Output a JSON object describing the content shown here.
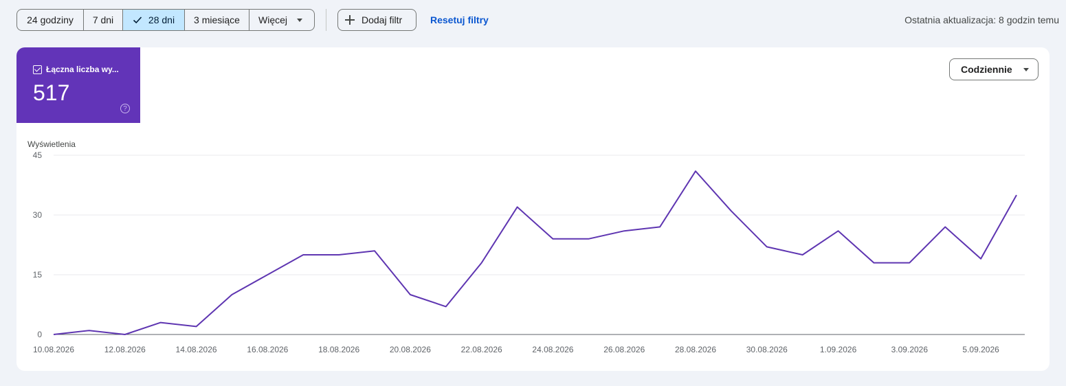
{
  "toolbar": {
    "ranges": [
      "24 godziny",
      "7 dni",
      "28 dni",
      "3 miesiące",
      "Więcej"
    ],
    "selected_range": "28 dni",
    "add_filter_label": "Dodaj filtr",
    "reset_label": "Resetuj filtry"
  },
  "last_update": "Ostatnia aktualizacja: 8 godzin temu",
  "metric": {
    "label": "Łączna liczba wy...",
    "value": "517",
    "checked": true,
    "color": "#6234b8"
  },
  "granularity": {
    "label": "Codziennie"
  },
  "chart_data": {
    "type": "line",
    "ylabel": "Wyświetlenia",
    "ylim": [
      0,
      45
    ],
    "yticks": [
      0,
      15,
      30,
      45
    ],
    "xtick_labels": [
      "10.08.2026",
      "12.08.2026",
      "14.08.2026",
      "16.08.2026",
      "18.08.2026",
      "20.08.2026",
      "22.08.2026",
      "24.08.2026",
      "26.08.2026",
      "28.08.2026",
      "30.08.2026",
      "1.09.2026",
      "3.09.2026",
      "5.09.2026"
    ],
    "x": [
      "10.08.2026",
      "11.08.2026",
      "12.08.2026",
      "13.08.2026",
      "14.08.2026",
      "15.08.2026",
      "16.08.2026",
      "17.08.2026",
      "18.08.2026",
      "19.08.2026",
      "20.08.2026",
      "21.08.2026",
      "22.08.2026",
      "23.08.2026",
      "24.08.2026",
      "25.08.2026",
      "26.08.2026",
      "27.08.2026",
      "28.08.2026",
      "29.08.2026",
      "30.08.2026",
      "31.08.2026",
      "1.09.2026",
      "2.09.2026",
      "3.09.2026",
      "4.09.2026",
      "5.09.2026",
      "6.09.2026"
    ],
    "series": [
      {
        "values": [
          0,
          1,
          0,
          3,
          2,
          10,
          15,
          20,
          20,
          21,
          10,
          7,
          18,
          32,
          24,
          24,
          26,
          27,
          41,
          31,
          22,
          20,
          26,
          18,
          18,
          27,
          19,
          35
        ]
      }
    ],
    "line_color": "#5e35b1",
    "grid": true
  }
}
